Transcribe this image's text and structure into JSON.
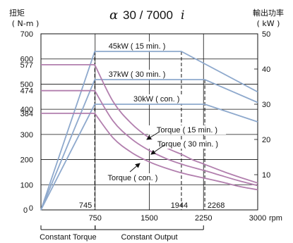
{
  "chart_data": {
    "type": "line",
    "title": {
      "alpha": "α",
      "model": "30 / 7000",
      "suffix": "i"
    },
    "left_axis_label": [
      "扭矩",
      "( N-m )"
    ],
    "right_axis_label": [
      "輸出功率",
      "( kW )"
    ],
    "xlim": [
      0,
      3000
    ],
    "ylim_torque": [
      0,
      700
    ],
    "ylim_power": [
      0,
      50
    ],
    "x_ticks": [
      {
        "value": 750,
        "label": "750"
      },
      {
        "value": 1500,
        "label": "1500"
      },
      {
        "value": 2250,
        "label": "2250"
      },
      {
        "value": 3000,
        "label": "3000"
      }
    ],
    "x_unit": "rpm",
    "x_origin_label": "0",
    "x_markers": [
      {
        "value": 745,
        "label": "745"
      },
      {
        "value": 1944,
        "label": "1944"
      },
      {
        "value": 2268,
        "label": "2268"
      }
    ],
    "y_ticks_left": [
      {
        "value": 0,
        "label": "0"
      },
      {
        "value": 100,
        "label": "100"
      },
      {
        "value": 200,
        "label": "200"
      },
      {
        "value": 300,
        "label": "300"
      },
      {
        "value": 384,
        "label": "384"
      },
      {
        "value": 400,
        "label": "400"
      },
      {
        "value": 474,
        "label": "474"
      },
      {
        "value": 500,
        "label": "500"
      },
      {
        "value": 577,
        "label": "577"
      },
      {
        "value": 600,
        "label": "600"
      },
      {
        "value": 700,
        "label": "700"
      }
    ],
    "y_ticks_right": [
      {
        "value": 10,
        "label": "10"
      },
      {
        "value": 20,
        "label": "20"
      },
      {
        "value": 30,
        "label": "30"
      },
      {
        "value": 40,
        "label": "40"
      },
      {
        "value": 50,
        "label": "50"
      }
    ],
    "grid": true,
    "power_series": [
      {
        "name": "45kW ( 15 min. )",
        "x": [
          0,
          745,
          1944,
          3000
        ],
        "y": [
          0,
          45,
          45,
          33.5
        ]
      },
      {
        "name": "37kW ( 30 min. )",
        "x": [
          0,
          745,
          2268,
          3000
        ],
        "y": [
          0,
          37,
          37,
          30.5
        ]
      },
      {
        "name": "30kW ( con. )",
        "x": [
          0,
          745,
          2268,
          3000
        ],
        "y": [
          0,
          30,
          30,
          25
        ]
      }
    ],
    "torque_series": [
      {
        "name": "Torque ( 15 min. )",
        "x": [
          0,
          745,
          1000,
          1250,
          1500,
          1750,
          1944,
          2100,
          2268,
          2500,
          2750,
          3000
        ],
        "y": [
          577,
          577,
          430,
          344,
          286,
          245,
          221,
          199,
          181,
          155,
          130,
          107
        ]
      },
      {
        "name": "Torque ( 30 min. )",
        "x": [
          0,
          745,
          1000,
          1250,
          1500,
          1750,
          2000,
          2268,
          2500,
          2750,
          3000
        ],
        "y": [
          474,
          474,
          353,
          283,
          236,
          202,
          177,
          156,
          136,
          115,
          97
        ]
      },
      {
        "name": "Torque ( con. )",
        "x": [
          0,
          745,
          1000,
          1250,
          1500,
          1750,
          2000,
          2268,
          2500,
          2750,
          3000
        ],
        "y": [
          384,
          384,
          286,
          229,
          191,
          164,
          143,
          126,
          111,
          93,
          80
        ]
      }
    ],
    "regions": [
      {
        "label": "Constant Torque",
        "x_start": 0,
        "x_end": 750
      },
      {
        "label": "Constant Output",
        "x_start": 750,
        "x_end": 2250
      }
    ],
    "colors": {
      "power": "#8ea9cd",
      "torque": "#b27fae",
      "grid": "#111111",
      "text": "#111111"
    }
  }
}
